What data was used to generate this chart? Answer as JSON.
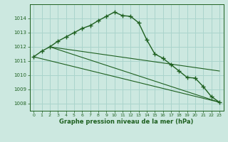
{
  "title": "Graphe pression niveau de la mer (hPa)",
  "background_color": "#cce8e0",
  "grid_color": "#aad4cc",
  "line_color": "#1e6020",
  "xlim": [
    -0.5,
    23.5
  ],
  "ylim": [
    1007.5,
    1015.0
  ],
  "yticks": [
    1008,
    1009,
    1010,
    1011,
    1012,
    1013,
    1014
  ],
  "xticks": [
    0,
    1,
    2,
    3,
    4,
    5,
    6,
    7,
    8,
    9,
    10,
    11,
    12,
    13,
    14,
    15,
    16,
    17,
    18,
    19,
    20,
    21,
    22,
    23
  ],
  "curve_x": [
    0,
    1,
    2,
    3,
    4,
    5,
    6,
    7,
    8,
    9,
    10,
    11,
    12,
    13,
    14,
    15,
    16,
    17,
    18,
    19,
    20,
    21,
    22,
    23
  ],
  "curve_y": [
    1011.3,
    1011.7,
    1012.0,
    1012.4,
    1012.7,
    1013.0,
    1013.3,
    1013.5,
    1013.85,
    1014.15,
    1014.45,
    1014.2,
    1014.15,
    1013.7,
    1012.5,
    1011.5,
    1011.2,
    1010.75,
    1010.3,
    1009.85,
    1009.8,
    1009.2,
    1008.5,
    1008.1
  ],
  "line1_x": [
    0,
    23
  ],
  "line1_y": [
    1011.3,
    1008.1
  ],
  "line2_x": [
    2,
    23
  ],
  "line2_y": [
    1012.0,
    1008.1
  ],
  "line3_x": [
    2,
    23
  ],
  "line3_y": [
    1012.0,
    1010.3
  ]
}
